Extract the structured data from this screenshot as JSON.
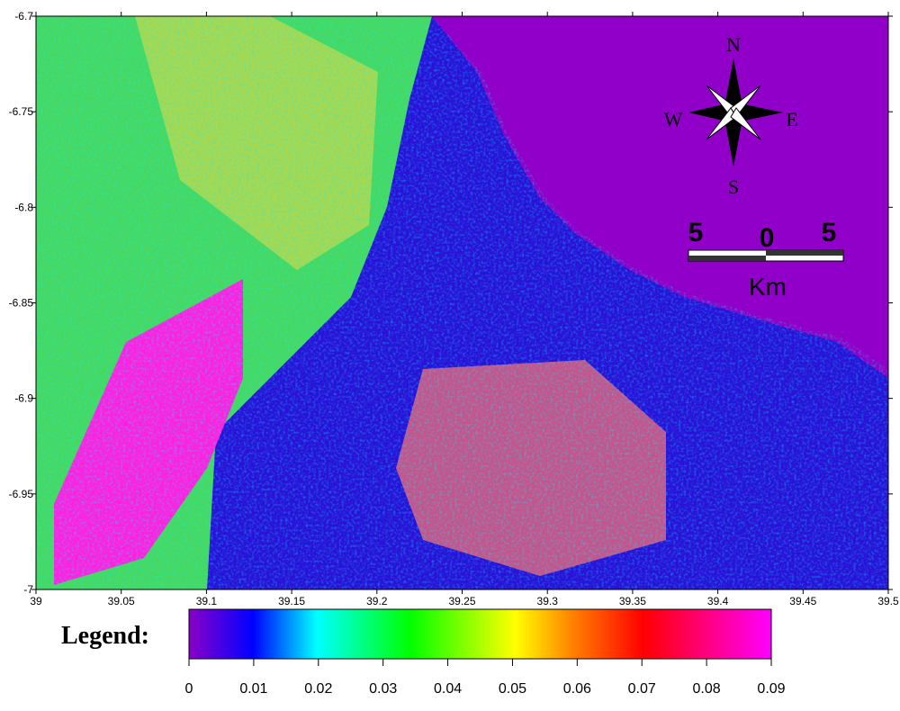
{
  "map": {
    "xlim": [
      39,
      39.5
    ],
    "ylim": [
      -7,
      -6.7
    ],
    "xticks": [
      39,
      39.05,
      39.1,
      39.15,
      39.2,
      39.25,
      39.3,
      39.35,
      39.4,
      39.45,
      39.5
    ],
    "yticks": [
      -6.7,
      -6.75,
      -6.8,
      -6.85,
      -6.9,
      -6.95,
      -7
    ]
  },
  "compass": {
    "north": "N",
    "east": "E",
    "south": "S",
    "west": "W"
  },
  "scale_bar": {
    "left": "5",
    "middle": "0",
    "right": "5",
    "unit": "Km"
  },
  "legend": {
    "title": "Legend:",
    "lim": [
      0,
      0.09
    ],
    "ticks": [
      0,
      0.01,
      0.02,
      0.03,
      0.04,
      0.05,
      0.06,
      0.07,
      0.08,
      0.09
    ]
  }
}
